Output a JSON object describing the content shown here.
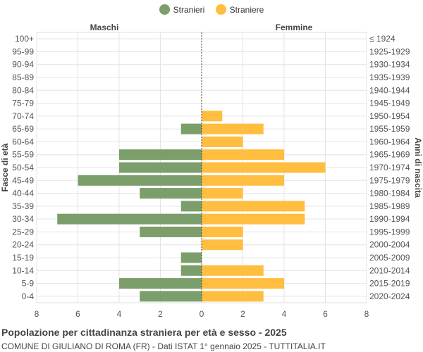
{
  "legend": {
    "items": [
      {
        "label": "Stranieri",
        "color": "#7b9e6b"
      },
      {
        "label": "Straniere",
        "color": "#ffbe40"
      }
    ]
  },
  "caption": {
    "title": "Popolazione per cittadinanza straniera per età e sesso - 2025",
    "subtitle": "COMUNE DI GIULIANO DI ROMA (FR) - Dati ISTAT 1° gennaio 2025 - TUTTITALIA.IT"
  },
  "chart_data": {
    "type": "bar",
    "orientation": "horizontal-population-pyramid",
    "left_header": "Maschi",
    "right_header": "Femmine",
    "ylabel_left": "Fasce di età",
    "ylabel_right": "Anni di nascita",
    "x_ticks": [
      "8",
      "6",
      "4",
      "2",
      "0",
      "2",
      "4",
      "6",
      "8"
    ],
    "xlim": [
      -8,
      8
    ],
    "grid": true,
    "legend_position": "top-center",
    "categories": [
      "100+",
      "95-99",
      "90-94",
      "85-89",
      "80-84",
      "75-79",
      "70-74",
      "65-69",
      "60-64",
      "55-59",
      "50-54",
      "45-49",
      "40-44",
      "35-39",
      "30-34",
      "25-29",
      "20-24",
      "15-19",
      "10-14",
      "5-9",
      "0-4"
    ],
    "birth_years": [
      "≤ 1924",
      "1925-1929",
      "1930-1934",
      "1935-1939",
      "1940-1944",
      "1945-1949",
      "1950-1954",
      "1955-1959",
      "1960-1964",
      "1965-1969",
      "1970-1974",
      "1975-1979",
      "1980-1984",
      "1985-1989",
      "1990-1994",
      "1995-1999",
      "2000-2004",
      "2005-2009",
      "2010-2014",
      "2015-2019",
      "2020-2024"
    ],
    "series": [
      {
        "name": "Stranieri",
        "color": "#7b9e6b",
        "values": [
          0,
          0,
          0,
          0,
          0,
          0,
          0,
          1,
          0,
          4,
          4,
          6,
          3,
          1,
          7,
          3,
          0,
          1,
          1,
          4,
          3
        ]
      },
      {
        "name": "Straniere",
        "color": "#ffbe40",
        "values": [
          0,
          0,
          0,
          0,
          0,
          0,
          1,
          3,
          2,
          4,
          6,
          4,
          2,
          5,
          5,
          2,
          2,
          0,
          3,
          4,
          3
        ]
      }
    ]
  }
}
